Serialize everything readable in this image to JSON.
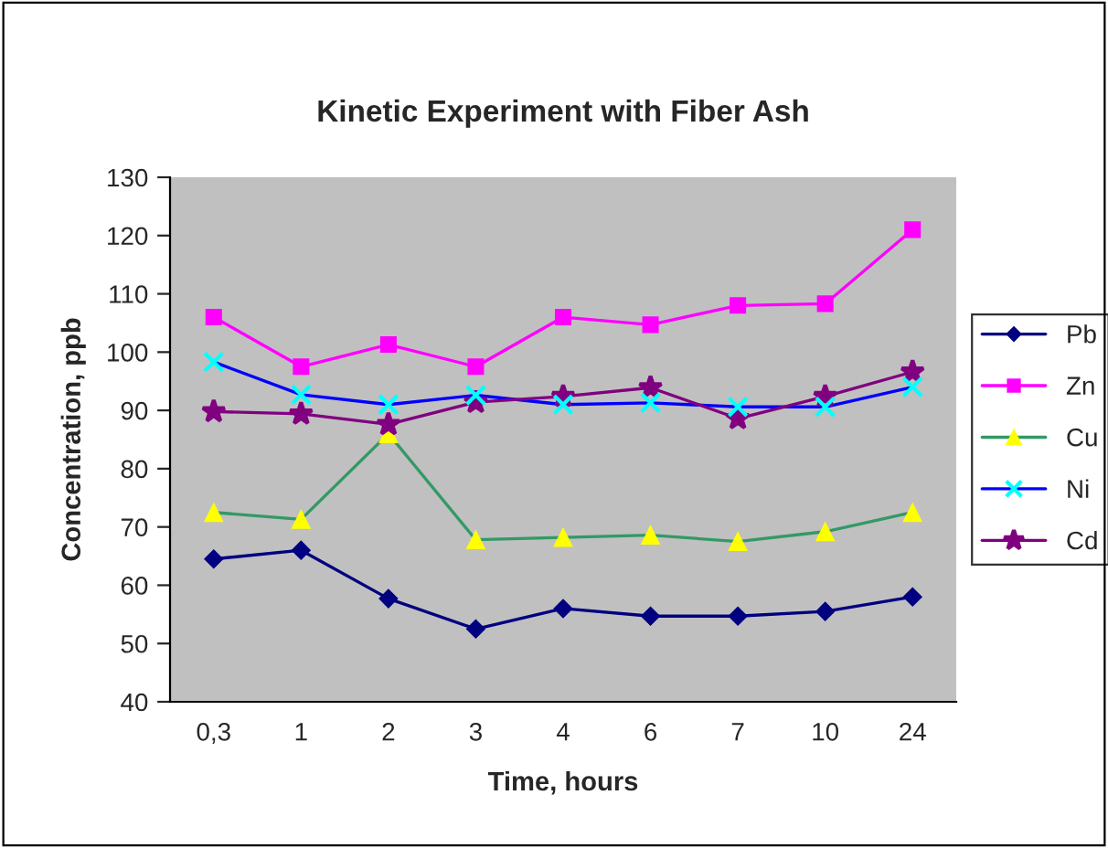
{
  "chart_data": {
    "type": "line",
    "title": "Kinetic Experiment with Fiber Ash",
    "xlabel": "Time, hours",
    "ylabel": "Concentration, ppb",
    "categories": [
      "0,3",
      "1",
      "2",
      "3",
      "4",
      "6",
      "7",
      "10",
      "24"
    ],
    "ylim": [
      40,
      130
    ],
    "yticks": [
      40,
      50,
      60,
      70,
      80,
      90,
      100,
      110,
      120,
      130
    ],
    "grid": false,
    "legend": "right",
    "series": [
      {
        "name": "Pb",
        "color": "#000080",
        "marker": "diamond",
        "colors": [
          "#000080",
          "#000080",
          "#000080",
          "#000080",
          "#000080",
          "#000080",
          "#000080",
          "#000080",
          "#000080"
        ],
        "values": [
          64.5,
          66,
          57.7,
          52.5,
          56,
          54.7,
          54.7,
          55.5,
          58
        ]
      },
      {
        "name": "Zn",
        "color": "#ff00ff",
        "marker": "square",
        "colors": [
          "#ff00ff",
          "#ff00ff",
          "#ff00ff",
          "#ff00ff",
          "#ff00ff",
          "#ff00ff",
          "#ff00ff",
          "#ff00ff",
          "#ff00ff"
        ],
        "values": [
          106,
          97.5,
          101.3,
          97.5,
          106,
          104.7,
          108,
          108.3,
          121
        ]
      },
      {
        "name": "Cu",
        "color": "#339966",
        "marker": "triangle",
        "colors": [
          "#ffff00",
          "#ffff00",
          "#ffff00",
          "#ffff00",
          "#ffff00",
          "#ffff00",
          "#ffff00",
          "#ffff00",
          "#ffff00"
        ],
        "values": [
          72.5,
          71.3,
          86,
          67.8,
          68.2,
          68.6,
          67.5,
          69.2,
          72.5
        ]
      },
      {
        "name": "Ni",
        "color": "#0000ff",
        "marker": "cross",
        "colors": [
          "#00ffff",
          "#00ffff",
          "#00ffff",
          "#00ffff",
          "#00ffff",
          "#00ffff",
          "#00ffff",
          "#00ffff",
          "#00ffff"
        ],
        "values": [
          98.3,
          92.7,
          91,
          92.6,
          91,
          91.3,
          90.6,
          90.6,
          94
        ]
      },
      {
        "name": "Cd",
        "color": "#800080",
        "marker": "star",
        "colors": [
          "#800080",
          "#800080",
          "#800080",
          "#800080",
          "#800080",
          "#800080",
          "#800080",
          "#800080",
          "#800080"
        ],
        "values": [
          89.8,
          89.4,
          87.6,
          91.4,
          92.4,
          93.9,
          88.6,
          92.4,
          96.6
        ]
      }
    ]
  }
}
